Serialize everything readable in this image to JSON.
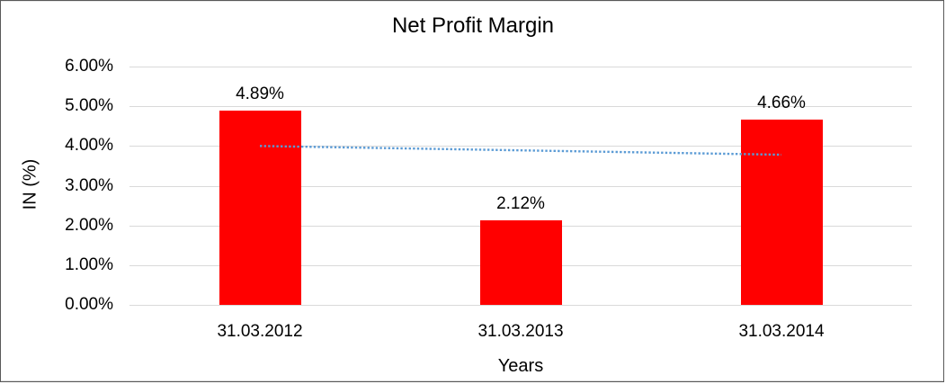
{
  "chart_data": {
    "type": "bar",
    "title": "Net Profit Margin",
    "xlabel": "Years",
    "ylabel": "IN (%)",
    "categories": [
      "31.03.2012",
      "31.03.2013",
      "31.03.2014"
    ],
    "values": [
      4.89,
      2.12,
      4.66
    ],
    "data_labels": [
      "4.89%",
      "2.12%",
      "4.66%"
    ],
    "ytick_labels": [
      "0.00%",
      "1.00%",
      "2.00%",
      "3.00%",
      "4.00%",
      "5.00%",
      "6.00%"
    ],
    "ytick_values": [
      0,
      1,
      2,
      3,
      4,
      5,
      6
    ],
    "ylim": [
      0,
      6
    ],
    "grid": true,
    "legend": "none",
    "colors": {
      "bar": "#FF0000",
      "gridline": "#D9D9D9",
      "trendline": "#5B9BD5",
      "text": "#000000"
    },
    "trendline": {
      "type": "linear",
      "style": "dotted",
      "start_value": 4.0,
      "end_value": 3.78
    }
  }
}
